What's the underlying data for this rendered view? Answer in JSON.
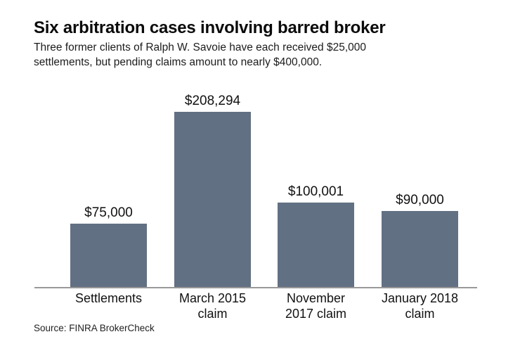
{
  "header": {
    "title": "Six arbitration cases involving barred broker",
    "subtitle": "Three former clients of Ralph W. Savoie have each received $25,000\nsettlements, but pending claims amount to nearly $400,000."
  },
  "chart_data": {
    "type": "bar",
    "title": "Six arbitration cases involving barred broker",
    "subtitle": "Three former clients of Ralph W. Savoie have each received $25,000 settlements, but pending claims amount to nearly $400,000.",
    "categories": [
      "Settlements",
      "March 2015\nclaim",
      "November\n2017 claim",
      "January 2018\nclaim"
    ],
    "values": [
      75000,
      208294,
      100001,
      90000
    ],
    "value_labels": [
      "$75,000",
      "$208,294",
      "$100,001",
      "$90,000"
    ],
    "xlabel": "",
    "ylabel": "",
    "ylim": [
      0,
      208294
    ],
    "grid": false,
    "legend": false,
    "bar_color": "#627083",
    "axis_color": "#999999",
    "text_color": "#111111"
  },
  "footer": {
    "source": "Source: FINRA BrokerCheck"
  }
}
